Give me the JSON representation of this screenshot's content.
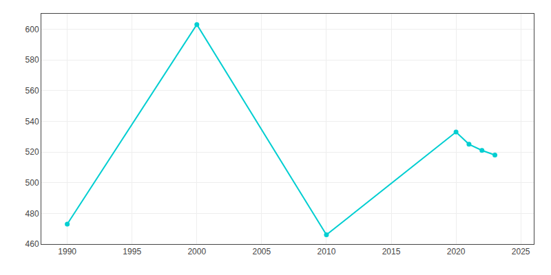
{
  "chart_data": {
    "type": "line",
    "x": [
      1990,
      2000,
      2010,
      2020,
      2021,
      2022,
      2023
    ],
    "values": [
      473,
      603,
      466,
      533,
      525,
      521,
      518
    ],
    "color": "#00CED1",
    "marker": "circle",
    "xlim": [
      1988,
      2026
    ],
    "xticks": [
      1990,
      1995,
      2000,
      2005,
      2010,
      2015,
      2020,
      2025
    ],
    "ylim": [
      460,
      610
    ],
    "yticks": [
      460,
      480,
      500,
      520,
      540,
      560,
      580,
      600
    ],
    "grid": true
  }
}
